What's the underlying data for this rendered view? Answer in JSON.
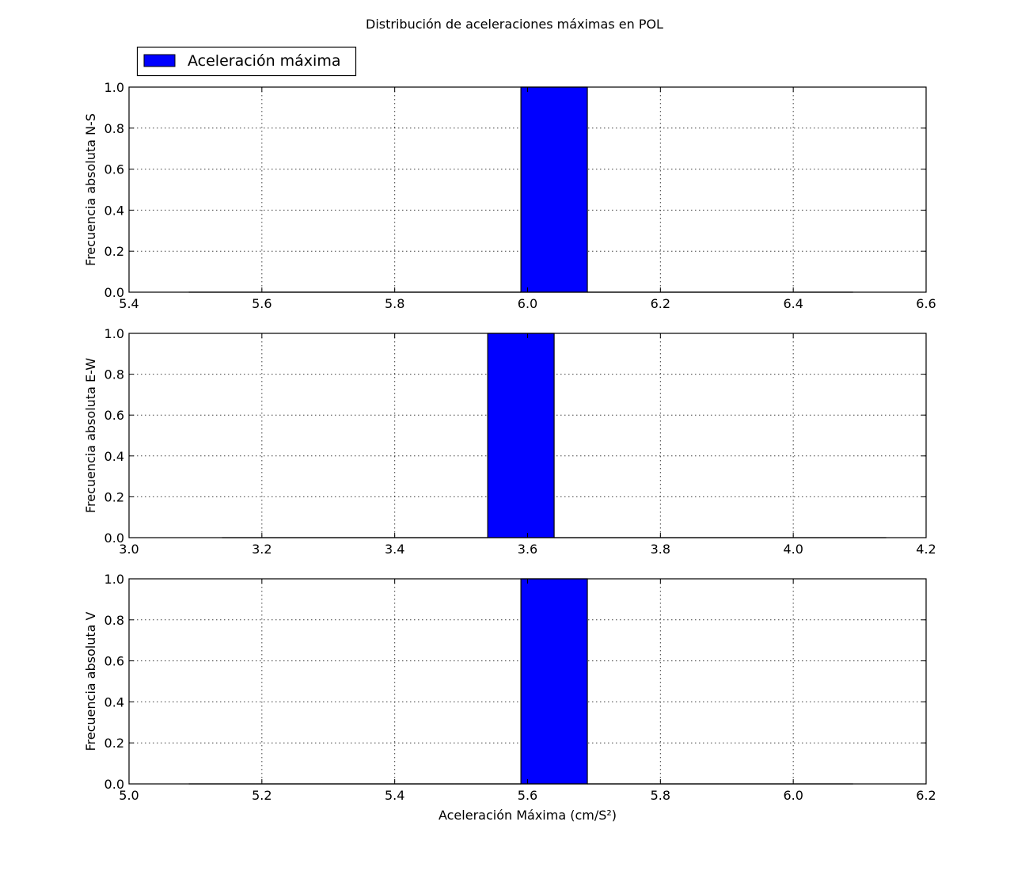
{
  "figure": {
    "title": "Distribución de aceleraciones máximas en POL"
  },
  "legend": {
    "label": "Aceleración máxima",
    "color": "#0000ff",
    "placement": "top-left"
  },
  "chart_data": [
    {
      "type": "bar",
      "ylabel": "Frecuencia absoluta N-S",
      "xlabel": "",
      "xlim": [
        5.4,
        6.6
      ],
      "ylim": [
        0.0,
        1.0
      ],
      "xticks": [
        "5.4",
        "5.6",
        "5.8",
        "6.0",
        "6.2",
        "6.4",
        "6.6"
      ],
      "yticks": [
        "0.0",
        "0.2",
        "0.4",
        "0.6",
        "0.8",
        "1.0"
      ],
      "grid": true,
      "bins": [
        {
          "x0": 5.49,
          "x1": 5.59,
          "value": 0
        },
        {
          "x0": 5.59,
          "x1": 5.69,
          "value": 0
        },
        {
          "x0": 5.69,
          "x1": 5.79,
          "value": 0
        },
        {
          "x0": 5.79,
          "x1": 5.89,
          "value": 0
        },
        {
          "x0": 5.89,
          "x1": 5.99,
          "value": 0
        },
        {
          "x0": 5.99,
          "x1": 6.09,
          "value": 1
        },
        {
          "x0": 6.09,
          "x1": 6.19,
          "value": 0
        },
        {
          "x0": 6.19,
          "x1": 6.29,
          "value": 0
        },
        {
          "x0": 6.29,
          "x1": 6.39,
          "value": 0
        },
        {
          "x0": 6.39,
          "x1": 6.49,
          "value": 0
        }
      ]
    },
    {
      "type": "bar",
      "ylabel": "Frecuencia absoluta E-W",
      "xlabel": "",
      "xlim": [
        3.0,
        4.2
      ],
      "ylim": [
        0.0,
        1.0
      ],
      "xticks": [
        "3.0",
        "3.2",
        "3.4",
        "3.6",
        "3.8",
        "4.0",
        "4.2"
      ],
      "yticks": [
        "0.0",
        "0.2",
        "0.4",
        "0.6",
        "0.8",
        "1.0"
      ],
      "grid": true,
      "bins": [
        {
          "x0": 3.14,
          "x1": 3.24,
          "value": 0
        },
        {
          "x0": 3.24,
          "x1": 3.34,
          "value": 0
        },
        {
          "x0": 3.34,
          "x1": 3.44,
          "value": 0
        },
        {
          "x0": 3.44,
          "x1": 3.54,
          "value": 0
        },
        {
          "x0": 3.54,
          "x1": 3.64,
          "value": 1
        },
        {
          "x0": 3.64,
          "x1": 3.74,
          "value": 0
        },
        {
          "x0": 3.74,
          "x1": 3.84,
          "value": 0
        },
        {
          "x0": 3.84,
          "x1": 3.94,
          "value": 0
        },
        {
          "x0": 3.94,
          "x1": 4.04,
          "value": 0
        },
        {
          "x0": 4.04,
          "x1": 4.14,
          "value": 0
        }
      ]
    },
    {
      "type": "bar",
      "ylabel": "Frecuencia absoluta V",
      "xlabel": "Aceleración Máxima (cm/S²)",
      "xlim": [
        5.0,
        6.2
      ],
      "ylim": [
        0.0,
        1.0
      ],
      "xticks": [
        "5.0",
        "5.2",
        "5.4",
        "5.6",
        "5.8",
        "6.0",
        "6.2"
      ],
      "yticks": [
        "0.0",
        "0.2",
        "0.4",
        "0.6",
        "0.8",
        "1.0"
      ],
      "grid": true,
      "bins": [
        {
          "x0": 5.09,
          "x1": 5.19,
          "value": 0
        },
        {
          "x0": 5.19,
          "x1": 5.29,
          "value": 0
        },
        {
          "x0": 5.29,
          "x1": 5.39,
          "value": 0
        },
        {
          "x0": 5.39,
          "x1": 5.49,
          "value": 0
        },
        {
          "x0": 5.49,
          "x1": 5.59,
          "value": 0
        },
        {
          "x0": 5.59,
          "x1": 5.69,
          "value": 1
        },
        {
          "x0": 5.69,
          "x1": 5.79,
          "value": 0
        },
        {
          "x0": 5.79,
          "x1": 5.89,
          "value": 0
        },
        {
          "x0": 5.89,
          "x1": 5.99,
          "value": 0
        },
        {
          "x0": 5.99,
          "x1": 6.09,
          "value": 0
        }
      ]
    }
  ]
}
